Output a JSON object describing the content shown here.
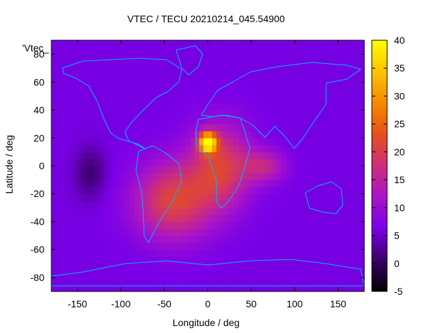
{
  "chart_data": {
    "type": "heatmap",
    "title": "VTEC / TECU 20210214_045.54900",
    "xlabel": "Longitude / deg",
    "ylabel": "Latitude / deg",
    "key_label": "'Vtec_",
    "xlim": [
      -180,
      180
    ],
    "ylim": [
      -90,
      90
    ],
    "x_ticks": [
      -150,
      -100,
      -50,
      0,
      50,
      100,
      150
    ],
    "y_ticks": [
      -80,
      -60,
      -40,
      -20,
      0,
      20,
      40,
      60,
      80
    ],
    "colorbar": {
      "range": [
        -5,
        40
      ],
      "ticks": [
        -5,
        0,
        5,
        10,
        15,
        20,
        25,
        30,
        35,
        40
      ],
      "palette": [
        "#000000",
        "#3a0066",
        "#7a00e8",
        "#a814c8",
        "#cd2e7a",
        "#e6501a",
        "#f58a00",
        "#fcc300",
        "#ffff00"
      ]
    },
    "background_level": 6,
    "features": [
      {
        "kind": "equatorial-anomaly-peak",
        "lon": 0,
        "lat": 17,
        "value": 38
      },
      {
        "kind": "south-america-atlantic-enhancement",
        "lon": -40,
        "lat": -25,
        "value": 21
      },
      {
        "kind": "africa-enhancement",
        "lon": 15,
        "lat": 0,
        "value": 20
      },
      {
        "kind": "indian-ocean-extension",
        "lon": 65,
        "lat": 0,
        "value": 15
      },
      {
        "kind": "pacific-low",
        "lon": -135,
        "lat": -5,
        "value": 1
      }
    ],
    "grid": false
  }
}
